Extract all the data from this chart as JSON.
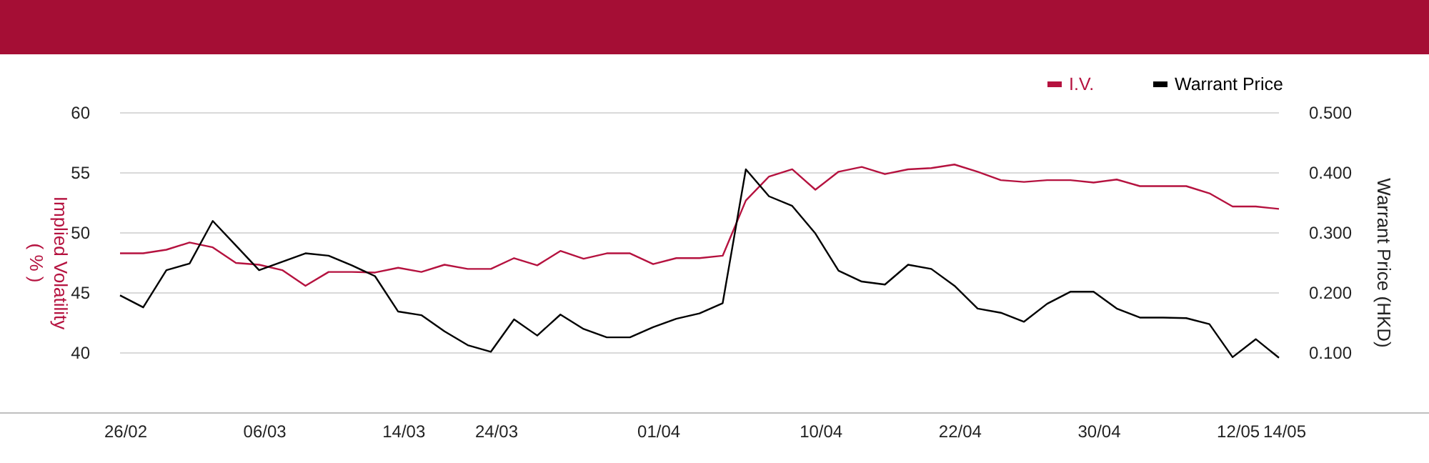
{
  "chart_data": {
    "type": "line",
    "categories": [
      "26/02",
      null,
      null,
      null,
      null,
      null,
      "06/03",
      null,
      null,
      null,
      null,
      null,
      "14/03",
      null,
      null,
      null,
      "24/03",
      null,
      null,
      null,
      null,
      null,
      null,
      "01/04",
      null,
      null,
      null,
      null,
      null,
      null,
      "10/04",
      null,
      null,
      null,
      null,
      null,
      "22/04",
      null,
      null,
      null,
      null,
      null,
      "30/04",
      null,
      null,
      null,
      null,
      null,
      "12/05",
      null,
      "14/05"
    ],
    "ylabel": "Implied Volatility\n( % )",
    "y2label": "Warrant Price (HKD)",
    "ylim": [
      35,
      60
    ],
    "yticks": [
      40,
      45,
      50,
      55,
      60
    ],
    "y2lim": [
      0,
      0.5
    ],
    "y2ticks": [
      {
        "value": 0.1,
        "label": "0.100"
      },
      {
        "value": 0.2,
        "label": "0.200"
      },
      {
        "value": 0.3,
        "label": "0.300"
      },
      {
        "value": 0.4,
        "label": "0.400"
      },
      {
        "value": 0.5,
        "label": "0.500"
      }
    ],
    "grid": "y",
    "legend": "top right",
    "line_style": "solid",
    "series": [
      {
        "name": "I.V.",
        "color": "#b5123f",
        "values": [
          48.3,
          48.3,
          48.6,
          49.2,
          48.8,
          47.5,
          47.35,
          46.9,
          45.6,
          46.75,
          46.75,
          46.7,
          47.1,
          46.75,
          47.35,
          47.0,
          47.0,
          47.9,
          47.3,
          48.5,
          47.85,
          48.3,
          48.3,
          47.4,
          47.9,
          47.9,
          48.1,
          52.7,
          54.7,
          55.3,
          53.6,
          55.1,
          55.5,
          54.9,
          55.3,
          55.4,
          55.7,
          55.1,
          54.4,
          54.25,
          54.4,
          54.4,
          54.2,
          54.45,
          53.9,
          53.9,
          53.9,
          53.3,
          52.2,
          52.2,
          52.0
        ]
      },
      {
        "name": "Warrant Price",
        "color": "#000000",
        "axis": "y2",
        "values": [
          0.196,
          0.176,
          0.238,
          0.249,
          0.32,
          0.279,
          0.238,
          0.252,
          0.266,
          0.262,
          0.246,
          0.228,
          0.169,
          0.163,
          0.136,
          0.113,
          0.102,
          0.156,
          0.129,
          0.164,
          0.14,
          0.126,
          0.126,
          0.143,
          0.157,
          0.166,
          0.183,
          0.406,
          0.361,
          0.345,
          0.299,
          0.237,
          0.219,
          0.214,
          0.247,
          0.24,
          0.212,
          0.174,
          0.167,
          0.152,
          0.182,
          0.202,
          0.202,
          0.174,
          0.159,
          0.159,
          0.158,
          0.148,
          0.093,
          0.123,
          0.092
        ]
      }
    ]
  }
}
